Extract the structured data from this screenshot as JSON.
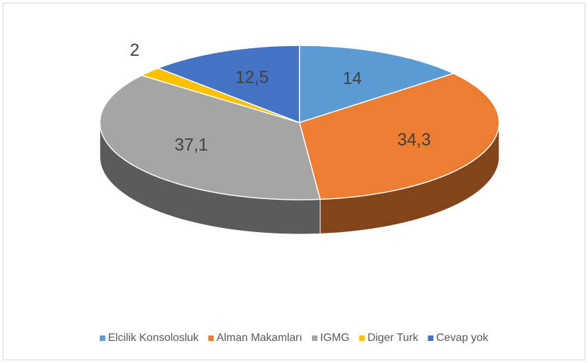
{
  "chart_data": {
    "type": "pie",
    "categories": [
      "Elcilik Konsolosluk",
      "Alman Makamları",
      "IGMG",
      "Diger Turk",
      "Cevap yok"
    ],
    "values": [
      14,
      34.3,
      37.1,
      2,
      12.5
    ],
    "value_labels": [
      "14",
      "34,3",
      "37,1",
      "2",
      "12,5"
    ],
    "colors": [
      "#5b9bd5",
      "#ed7d31",
      "#a5a5a5",
      "#ffc000",
      "#4472c4"
    ],
    "legend": "bottom"
  }
}
